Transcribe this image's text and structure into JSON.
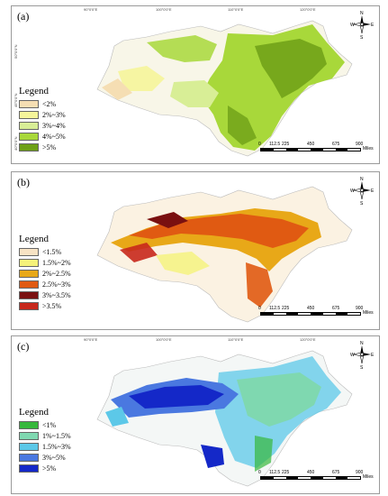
{
  "legend_title": "Legend",
  "units": "Miles",
  "scale_ticks": [
    "0",
    "112.5",
    "225",
    "450",
    "675",
    "900"
  ],
  "compass": {
    "n": "N",
    "s": "S",
    "e": "E",
    "w": "W"
  },
  "longitude_ticks": [
    "90°0'0\"E",
    "100°0'0\"E",
    "110°0'0\"E",
    "120°0'0\"E"
  ],
  "latitude_ticks": [
    "50°0'0\"N",
    "45°0'0\"N",
    "40°0'0\"N"
  ],
  "panels": [
    {
      "label": "(a)",
      "legend": [
        {
          "label": "<2%",
          "color": "#f5deb3"
        },
        {
          "label": "2%~3%",
          "color": "#f5f59a"
        },
        {
          "label": "3%~4%",
          "color": "#d8ee96"
        },
        {
          "label": "4%~5%",
          "color": "#a8d83a"
        },
        {
          "label": ">5%",
          "color": "#6ea018"
        }
      ]
    },
    {
      "label": "(b)",
      "legend": [
        {
          "label": "<1.5%",
          "color": "#f7e3c4"
        },
        {
          "label": "1.5%~2%",
          "color": "#f5f27a"
        },
        {
          "label": "2%~2.5%",
          "color": "#e8a818"
        },
        {
          "label": "2.5%~3%",
          "color": "#e05a12"
        },
        {
          "label": "3%~3.5%",
          "color": "#7a1010"
        },
        {
          "label": ">3.5%",
          "color": "#c8281c"
        }
      ]
    },
    {
      "label": "(c)",
      "legend": [
        {
          "label": "<1%",
          "color": "#36b83c"
        },
        {
          "label": "1%~1.5%",
          "color": "#7fd8b0"
        },
        {
          "label": "1.5%~3%",
          "color": "#5cc8e8"
        },
        {
          "label": "3%~5%",
          "color": "#4a78e0"
        },
        {
          "label": ">5%",
          "color": "#1428c8"
        }
      ]
    }
  ]
}
